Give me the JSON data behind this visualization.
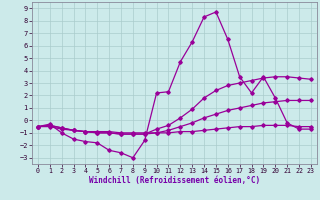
{
  "title": "",
  "xlabel": "Windchill (Refroidissement éolien,°C)",
  "background_color": "#cceaea",
  "grid_color": "#aacccc",
  "line_color": "#990099",
  "xlim": [
    -0.5,
    23.5
  ],
  "ylim": [
    -3.5,
    9.5
  ],
  "xticks": [
    0,
    1,
    2,
    3,
    4,
    5,
    6,
    7,
    8,
    9,
    10,
    11,
    12,
    13,
    14,
    15,
    16,
    17,
    18,
    19,
    20,
    21,
    22,
    23
  ],
  "yticks": [
    -3,
    -2,
    -1,
    0,
    1,
    2,
    3,
    4,
    5,
    6,
    7,
    8,
    9
  ],
  "series1_x": [
    0,
    1,
    2,
    3,
    4,
    5,
    6,
    7,
    8,
    9,
    10,
    11,
    12,
    13,
    14,
    15,
    16,
    17,
    18,
    19,
    20,
    21,
    22,
    23
  ],
  "series1_y": [
    -0.5,
    -0.3,
    -1.0,
    -1.5,
    -1.7,
    -1.8,
    -2.4,
    -2.6,
    -3.0,
    -1.6,
    2.2,
    2.3,
    4.7,
    6.3,
    8.3,
    8.7,
    6.5,
    3.5,
    2.2,
    3.5,
    1.8,
    -0.2,
    -0.7,
    -0.7
  ],
  "series2_x": [
    0,
    1,
    2,
    3,
    4,
    5,
    6,
    7,
    8,
    9,
    10,
    11,
    12,
    13,
    14,
    15,
    16,
    17,
    18,
    19,
    20,
    21,
    22,
    23
  ],
  "series2_y": [
    -0.5,
    -0.4,
    -0.6,
    -0.8,
    -0.9,
    -1.0,
    -1.0,
    -1.1,
    -1.1,
    -1.1,
    -0.7,
    -0.4,
    0.2,
    0.9,
    1.8,
    2.4,
    2.8,
    3.0,
    3.2,
    3.4,
    3.5,
    3.5,
    3.4,
    3.3
  ],
  "series3_x": [
    0,
    1,
    2,
    3,
    4,
    5,
    6,
    7,
    8,
    9,
    10,
    11,
    12,
    13,
    14,
    15,
    16,
    17,
    18,
    19,
    20,
    21,
    22,
    23
  ],
  "series3_y": [
    -0.5,
    -0.4,
    -0.6,
    -0.8,
    -0.9,
    -1.0,
    -1.0,
    -1.1,
    -1.1,
    -1.1,
    -1.0,
    -0.8,
    -0.5,
    -0.2,
    0.2,
    0.5,
    0.8,
    1.0,
    1.2,
    1.4,
    1.5,
    1.6,
    1.6,
    1.6
  ],
  "series4_x": [
    0,
    1,
    2,
    3,
    4,
    5,
    6,
    7,
    8,
    9,
    10,
    11,
    12,
    13,
    14,
    15,
    16,
    17,
    18,
    19,
    20,
    21,
    22,
    23
  ],
  "series4_y": [
    -0.5,
    -0.5,
    -0.7,
    -0.8,
    -0.9,
    -0.9,
    -0.9,
    -1.0,
    -1.0,
    -1.0,
    -1.0,
    -1.0,
    -0.9,
    -0.9,
    -0.8,
    -0.7,
    -0.6,
    -0.5,
    -0.5,
    -0.4,
    -0.4,
    -0.4,
    -0.5,
    -0.5
  ]
}
